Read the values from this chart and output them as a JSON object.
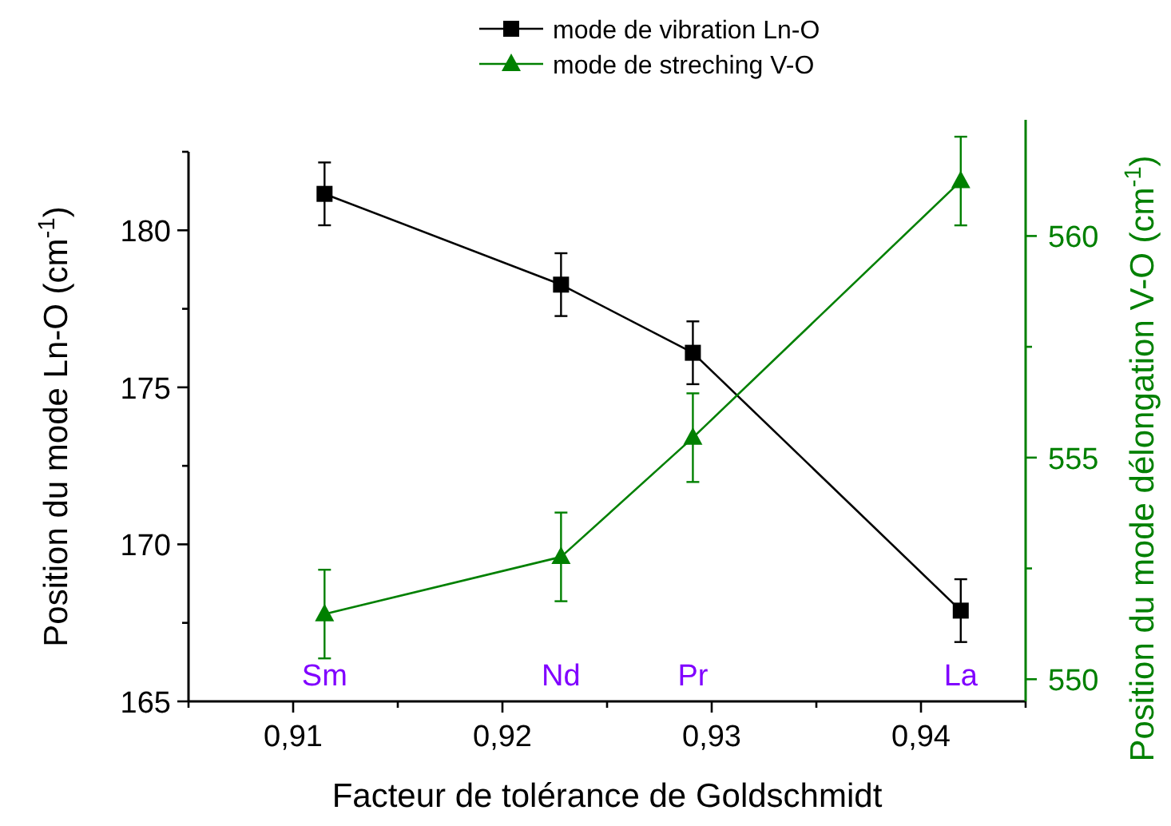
{
  "chart_data": {
    "type": "line",
    "xlabel": "Facteur de tolérance de Goldschmidt",
    "ylabel": "Position du mode Ln-O (cm$^{-1}$)",
    "y2label": "Position du mode délongation V-O (cm$^{-1}$)",
    "x": [
      0.9115,
      0.9228,
      0.9291,
      0.9419
    ],
    "series": [
      {
        "name": "mode de vibration Ln-O",
        "color": "#000000",
        "marker": "square",
        "values": [
          181.16,
          178.27,
          176.1,
          167.89
        ],
        "errors": [
          1,
          1,
          1,
          1
        ]
      },
      {
        "name": "mode de streching V-O",
        "color": "#008000",
        "marker": "triangle",
        "axis": "y2",
        "values": [
          551.47,
          552.76,
          555.45,
          561.24
        ],
        "errors": [
          1,
          1,
          1,
          1
        ]
      }
    ],
    "xlim": [
      0.905,
      0.945
    ],
    "xticks": [
      {
        "value": 0.905,
        "label": null
      },
      {
        "value": 0.91,
        "label": "0,91"
      },
      {
        "value": 0.915,
        "label": null
      },
      {
        "value": 0.92,
        "label": "0,92"
      },
      {
        "value": 0.925,
        "label": null
      },
      {
        "value": 0.93,
        "label": "0,93"
      },
      {
        "value": 0.935,
        "label": null
      },
      {
        "value": 0.94,
        "label": "0,94"
      },
      {
        "value": 0.945,
        "label": null
      }
    ],
    "ylim": [
      165,
      182.5
    ],
    "yticks": [
      165,
      {
        "value": 167.5,
        "label": null
      },
      170,
      {
        "value": 172.5,
        "label": null
      },
      175,
      {
        "value": 177.5,
        "label": null
      },
      180,
      {
        "value": 182.5,
        "label": null
      }
    ],
    "y2lim": [
      549.5,
      561.9
    ],
    "y2ticks": [
      550,
      {
        "value": 552.5,
        "label": null
      },
      555,
      {
        "value": 557.5,
        "label": null
      },
      560
    ],
    "annotations": [
      "Sm",
      "Nd",
      "Pr",
      "La"
    ],
    "legend": "top",
    "grid": false
  }
}
